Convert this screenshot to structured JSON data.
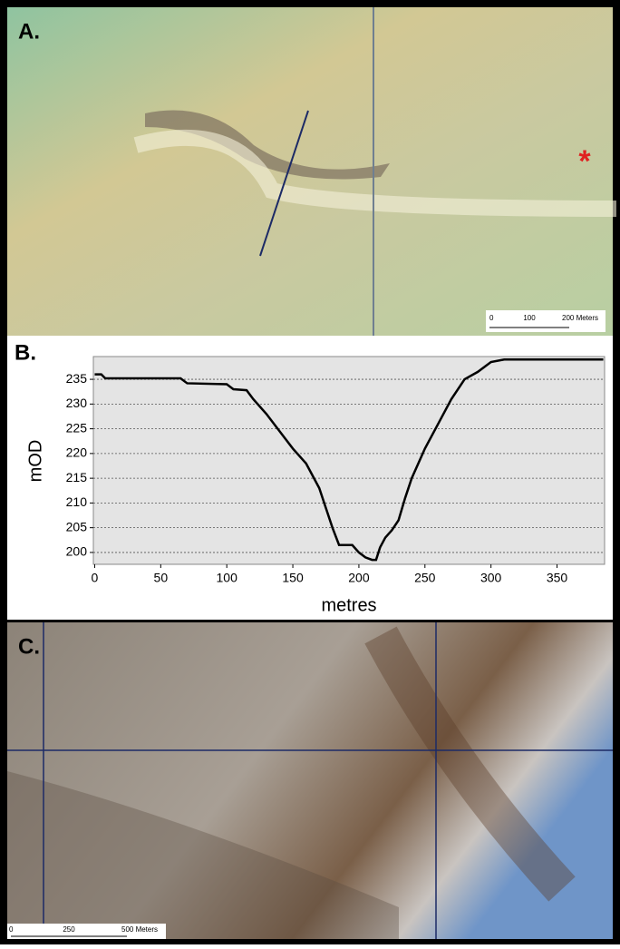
{
  "panel_a": {
    "label": "A.",
    "marker": "*",
    "scale_labels": [
      "0",
      "100",
      "200 Meters"
    ]
  },
  "chart_data": {
    "type": "line",
    "label": "B.",
    "x_label": "metres",
    "y_label": "mOD",
    "x": [
      0,
      5,
      8,
      65,
      70,
      100,
      105,
      115,
      120,
      130,
      140,
      150,
      160,
      170,
      175,
      180,
      185,
      195,
      200,
      205,
      210,
      213,
      216,
      220,
      225,
      230,
      235,
      240,
      250,
      260,
      270,
      280,
      290,
      300,
      310,
      385
    ],
    "series": [
      {
        "color": "#000000",
        "values": [
          236,
          236,
          235.2,
          235.2,
          234.2,
          234,
          233,
          232.8,
          231,
          228,
          224.5,
          221,
          218,
          213,
          209,
          205,
          201.5,
          201.5,
          200,
          199,
          198.5,
          198.5,
          201,
          203,
          204.5,
          206.5,
          211,
          215,
          221,
          226,
          231,
          235,
          236.5,
          238.5,
          239,
          239
        ]
      }
    ],
    "xlim": [
      -1,
      386
    ],
    "ylim": [
      197.6,
      239.6
    ],
    "xticks": [
      0,
      50,
      100,
      150,
      200,
      250,
      300,
      350
    ],
    "yticks": [
      200,
      205,
      210,
      215,
      220,
      225,
      230,
      235
    ],
    "grid": true
  },
  "panel_c": {
    "label": "C.",
    "scale_labels": [
      "0",
      "250",
      "500 Meters"
    ]
  }
}
